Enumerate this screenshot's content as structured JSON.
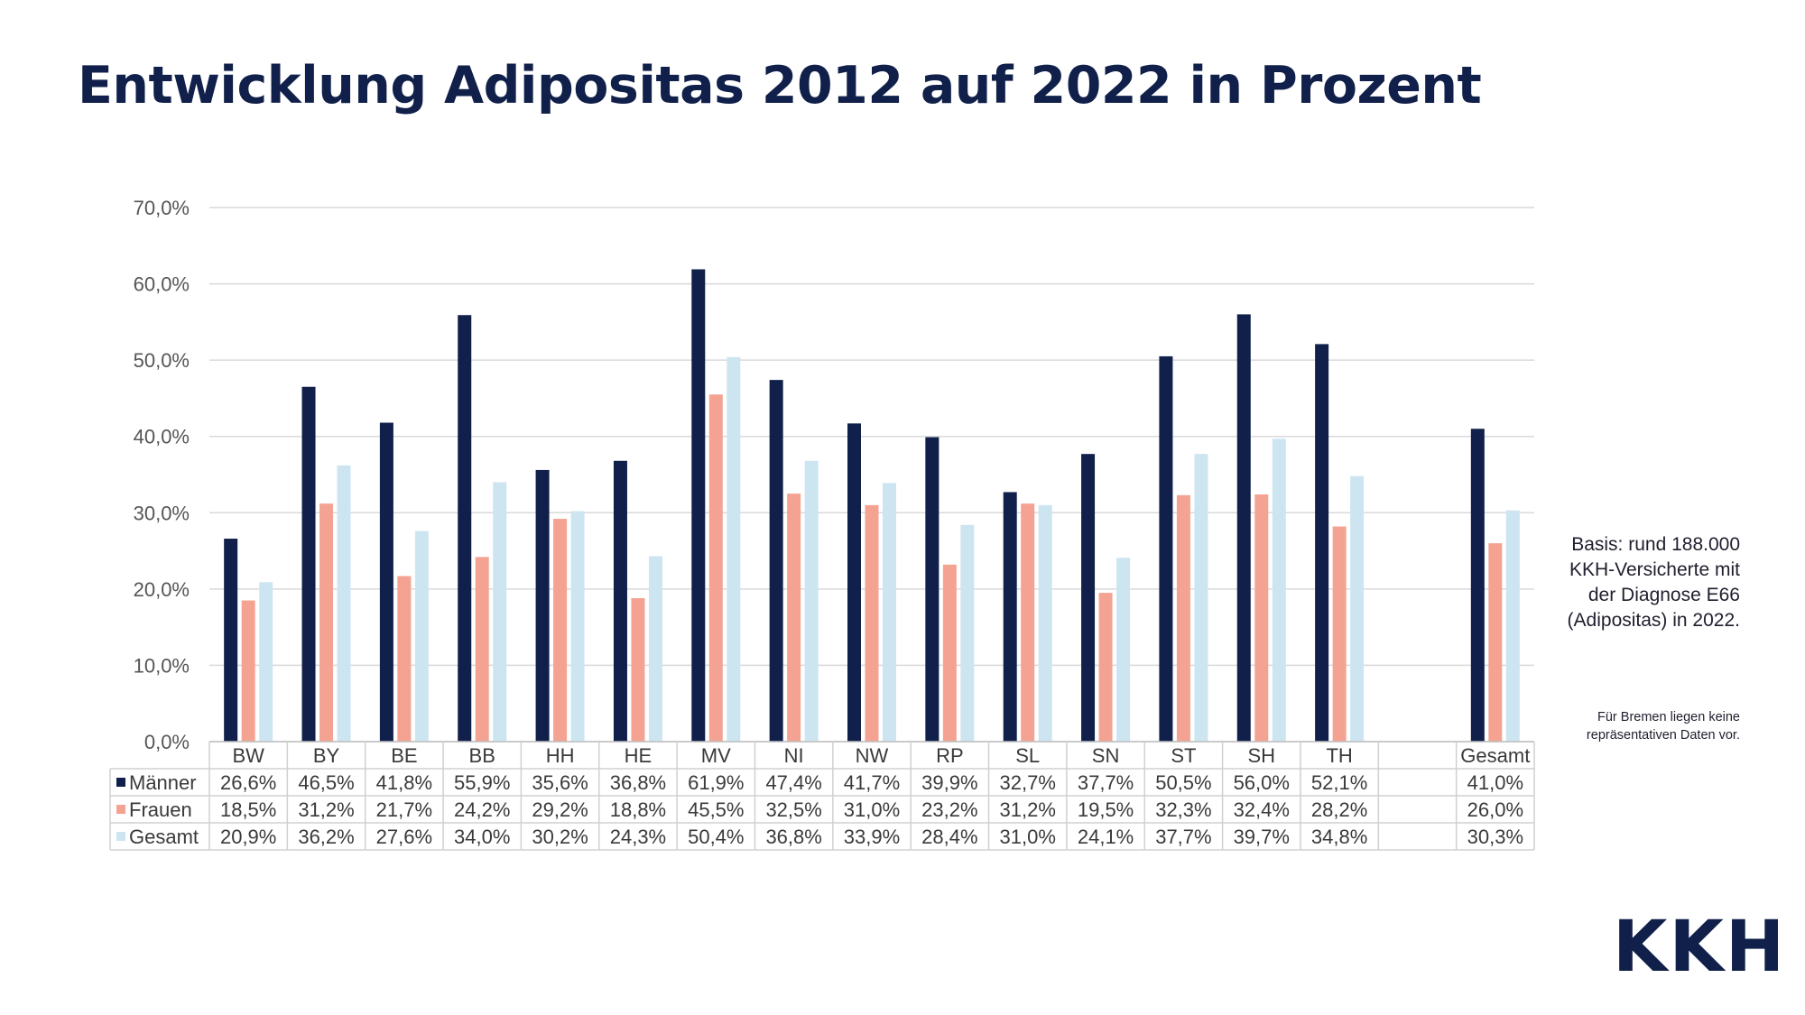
{
  "title": "Entwicklung Adipositas 2012 auf 2022 in Prozent",
  "notes": {
    "basis": "Basis: rund 188.000 KKH-Versicherte mit der Diagnose E66 (Adipositas) in 2022.",
    "bremen": "Für Bremen liegen keine repräsentativen Daten vor."
  },
  "logo": "KKH",
  "colors": {
    "maenner": "#10204a",
    "frauen": "#f4a393",
    "gesamt": "#cde5f1",
    "grid": "#d9d9d9",
    "table_border": "#d0d0d0"
  },
  "chart_data": {
    "type": "bar",
    "categories": [
      "BW",
      "BY",
      "BE",
      "BB",
      "HH",
      "HE",
      "MV",
      "NI",
      "NW",
      "RP",
      "SL",
      "SN",
      "ST",
      "SH",
      "TH",
      "",
      "Gesamt"
    ],
    "series": [
      {
        "name": "Männer",
        "values": [
          26.6,
          46.5,
          41.8,
          55.9,
          35.6,
          36.8,
          61.9,
          47.4,
          41.7,
          39.9,
          32.7,
          37.7,
          50.5,
          56.0,
          52.1,
          null,
          41.0
        ],
        "labels": [
          "26,6%",
          "46,5%",
          "41,8%",
          "55,9%",
          "35,6%",
          "36,8%",
          "61,9%",
          "47,4%",
          "41,7%",
          "39,9%",
          "32,7%",
          "37,7%",
          "50,5%",
          "56,0%",
          "52,1%",
          "",
          "41,0%"
        ]
      },
      {
        "name": "Frauen",
        "values": [
          18.5,
          31.2,
          21.7,
          24.2,
          29.2,
          18.8,
          45.5,
          32.5,
          31.0,
          23.2,
          31.2,
          19.5,
          32.3,
          32.4,
          28.2,
          null,
          26.0
        ],
        "labels": [
          "18,5%",
          "31,2%",
          "21,7%",
          "24,2%",
          "29,2%",
          "18,8%",
          "45,5%",
          "32,5%",
          "31,0%",
          "23,2%",
          "31,2%",
          "19,5%",
          "32,3%",
          "32,4%",
          "28,2%",
          "",
          "26,0%"
        ]
      },
      {
        "name": "Gesamt",
        "values": [
          20.9,
          36.2,
          27.6,
          34.0,
          30.2,
          24.3,
          50.4,
          36.8,
          33.9,
          28.4,
          31.0,
          24.1,
          37.7,
          39.7,
          34.8,
          null,
          30.3
        ],
        "labels": [
          "20,9%",
          "36,2%",
          "27,6%",
          "34,0%",
          "30,2%",
          "24,3%",
          "50,4%",
          "36,8%",
          "33,9%",
          "28,4%",
          "31,0%",
          "24,1%",
          "37,7%",
          "39,7%",
          "34,8%",
          "",
          "30,3%"
        ]
      }
    ],
    "ylim": [
      0,
      70
    ],
    "yticks": [
      0,
      10,
      20,
      30,
      40,
      50,
      60,
      70
    ],
    "ytick_labels": [
      "0,0%",
      "10,0%",
      "20,0%",
      "30,0%",
      "40,0%",
      "50,0%",
      "60,0%",
      "70,0%"
    ],
    "grid": true,
    "legend": "data-table"
  }
}
